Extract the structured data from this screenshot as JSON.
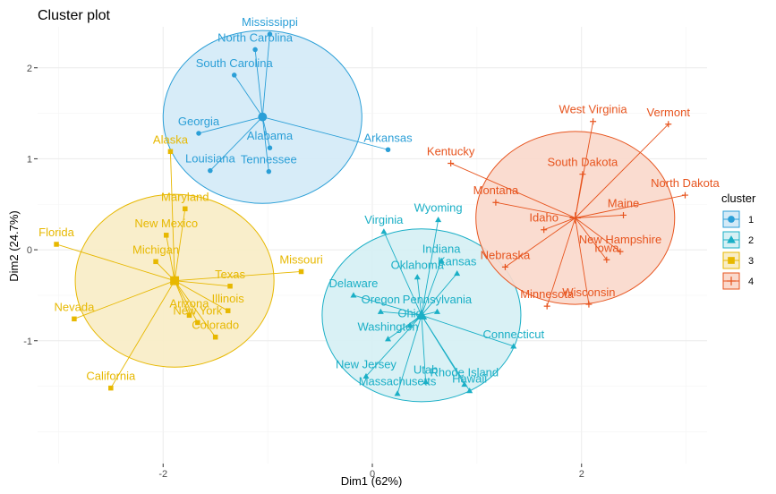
{
  "chart_data": {
    "type": "scatter",
    "title": "Cluster plot",
    "xlabel": "Dim1 (62%)",
    "ylabel": "Dim2 (24.7%)",
    "xlim": [
      -3.2,
      3.2
    ],
    "ylim": [
      -2.35,
      2.45
    ],
    "xticks": [
      -2,
      0,
      2
    ],
    "yticks": [
      -1,
      0,
      1,
      2
    ],
    "grid": true,
    "legend": {
      "title": "cluster",
      "position": "right"
    },
    "clusters": [
      {
        "name": "1",
        "color": "#2b9fd7",
        "fill": "#d4eaf7",
        "marker": "circle",
        "center": [
          -1.05,
          1.46
        ],
        "ellipse": {
          "rx": 0.95,
          "ry": 0.95
        },
        "points": [
          {
            "label": "Mississippi",
            "x": -0.98,
            "y": 2.37
          },
          {
            "label": "North Carolina",
            "x": -1.12,
            "y": 2.2
          },
          {
            "label": "South Carolina",
            "x": -1.32,
            "y": 1.92
          },
          {
            "label": "Georgia",
            "x": -1.66,
            "y": 1.28
          },
          {
            "label": "Alabama",
            "x": -0.98,
            "y": 1.12
          },
          {
            "label": "Arkansas",
            "x": 0.15,
            "y": 1.1
          },
          {
            "label": "Louisiana",
            "x": -1.55,
            "y": 0.87
          },
          {
            "label": "Tennessee",
            "x": -0.99,
            "y": 0.86
          }
        ]
      },
      {
        "name": "2",
        "color": "#1aafc6",
        "fill": "#d6f0f4",
        "marker": "triangle",
        "center": [
          0.47,
          -0.72
        ],
        "ellipse": {
          "rx": 0.95,
          "ry": 0.95
        },
        "points": [
          {
            "label": "Wyoming",
            "x": 0.63,
            "y": 0.33
          },
          {
            "label": "Virginia",
            "x": 0.11,
            "y": 0.2
          },
          {
            "label": "Indiana",
            "x": 0.66,
            "y": -0.12
          },
          {
            "label": "Oklahoma",
            "x": 0.43,
            "y": -0.3
          },
          {
            "label": "Kansas",
            "x": 0.81,
            "y": -0.26
          },
          {
            "label": "Delaware",
            "x": -0.18,
            "y": -0.5
          },
          {
            "label": "Oregon",
            "x": 0.08,
            "y": -0.68
          },
          {
            "label": "Pennsylvania",
            "x": 0.62,
            "y": -0.68
          },
          {
            "label": "Ohio",
            "x": 0.36,
            "y": -0.83
          },
          {
            "label": "Washington",
            "x": 0.15,
            "y": -0.98
          },
          {
            "label": "Connecticut",
            "x": 1.35,
            "y": -1.06
          },
          {
            "label": "New Jersey",
            "x": -0.06,
            "y": -1.39
          },
          {
            "label": "Utah",
            "x": 0.51,
            "y": -1.45
          },
          {
            "label": "Rhode Island",
            "x": 0.88,
            "y": -1.48
          },
          {
            "label": "Massachusetts",
            "x": 0.24,
            "y": -1.58
          },
          {
            "label": "Hawaii",
            "x": 0.93,
            "y": -1.55
          }
        ]
      },
      {
        "name": "3",
        "color": "#e7b800",
        "fill": "#f8edc7",
        "marker": "square",
        "center": [
          -1.89,
          -0.34
        ],
        "ellipse": {
          "rx": 0.95,
          "ry": 0.95
        },
        "points": [
          {
            "label": "Alaska",
            "x": -1.93,
            "y": 1.08
          },
          {
            "label": "Maryland",
            "x": -1.79,
            "y": 0.45
          },
          {
            "label": "New Mexico",
            "x": -1.97,
            "y": 0.16
          },
          {
            "label": "Florida",
            "x": -3.02,
            "y": 0.06
          },
          {
            "label": "Michigan",
            "x": -2.07,
            "y": -0.13
          },
          {
            "label": "Missouri",
            "x": -0.68,
            "y": -0.24
          },
          {
            "label": "Texas",
            "x": -1.36,
            "y": -0.4
          },
          {
            "label": "Illinois",
            "x": -1.38,
            "y": -0.67
          },
          {
            "label": "Nevada",
            "x": -2.85,
            "y": -0.76
          },
          {
            "label": "Arizona",
            "x": -1.75,
            "y": -0.72
          },
          {
            "label": "New York",
            "x": -1.67,
            "y": -0.8
          },
          {
            "label": "Colorado",
            "x": -1.5,
            "y": -0.96
          },
          {
            "label": "California",
            "x": -2.5,
            "y": -1.52
          }
        ]
      },
      {
        "name": "4",
        "color": "#e7541e",
        "fill": "#fad9cc",
        "marker": "plus",
        "center": [
          1.94,
          0.35
        ],
        "ellipse": {
          "rx": 0.95,
          "ry": 0.95
        },
        "points": [
          {
            "label": "West Virginia",
            "x": 2.11,
            "y": 1.41
          },
          {
            "label": "Vermont",
            "x": 2.83,
            "y": 1.38
          },
          {
            "label": "Kentucky",
            "x": 0.75,
            "y": 0.95
          },
          {
            "label": "South Dakota",
            "x": 2.01,
            "y": 0.83
          },
          {
            "label": "North Dakota",
            "x": 2.99,
            "y": 0.6
          },
          {
            "label": "Montana",
            "x": 1.18,
            "y": 0.52
          },
          {
            "label": "Idaho",
            "x": 1.64,
            "y": 0.22
          },
          {
            "label": "Maine",
            "x": 2.4,
            "y": 0.38
          },
          {
            "label": "New Hampshire",
            "x": 2.37,
            "y": -0.02
          },
          {
            "label": "Nebraska",
            "x": 1.27,
            "y": -0.19
          },
          {
            "label": "Iowa",
            "x": 2.24,
            "y": -0.11
          },
          {
            "label": "Wisconsin",
            "x": 2.07,
            "y": -0.6
          },
          {
            "label": "Minnesota",
            "x": 1.67,
            "y": -0.62
          }
        ]
      }
    ]
  }
}
